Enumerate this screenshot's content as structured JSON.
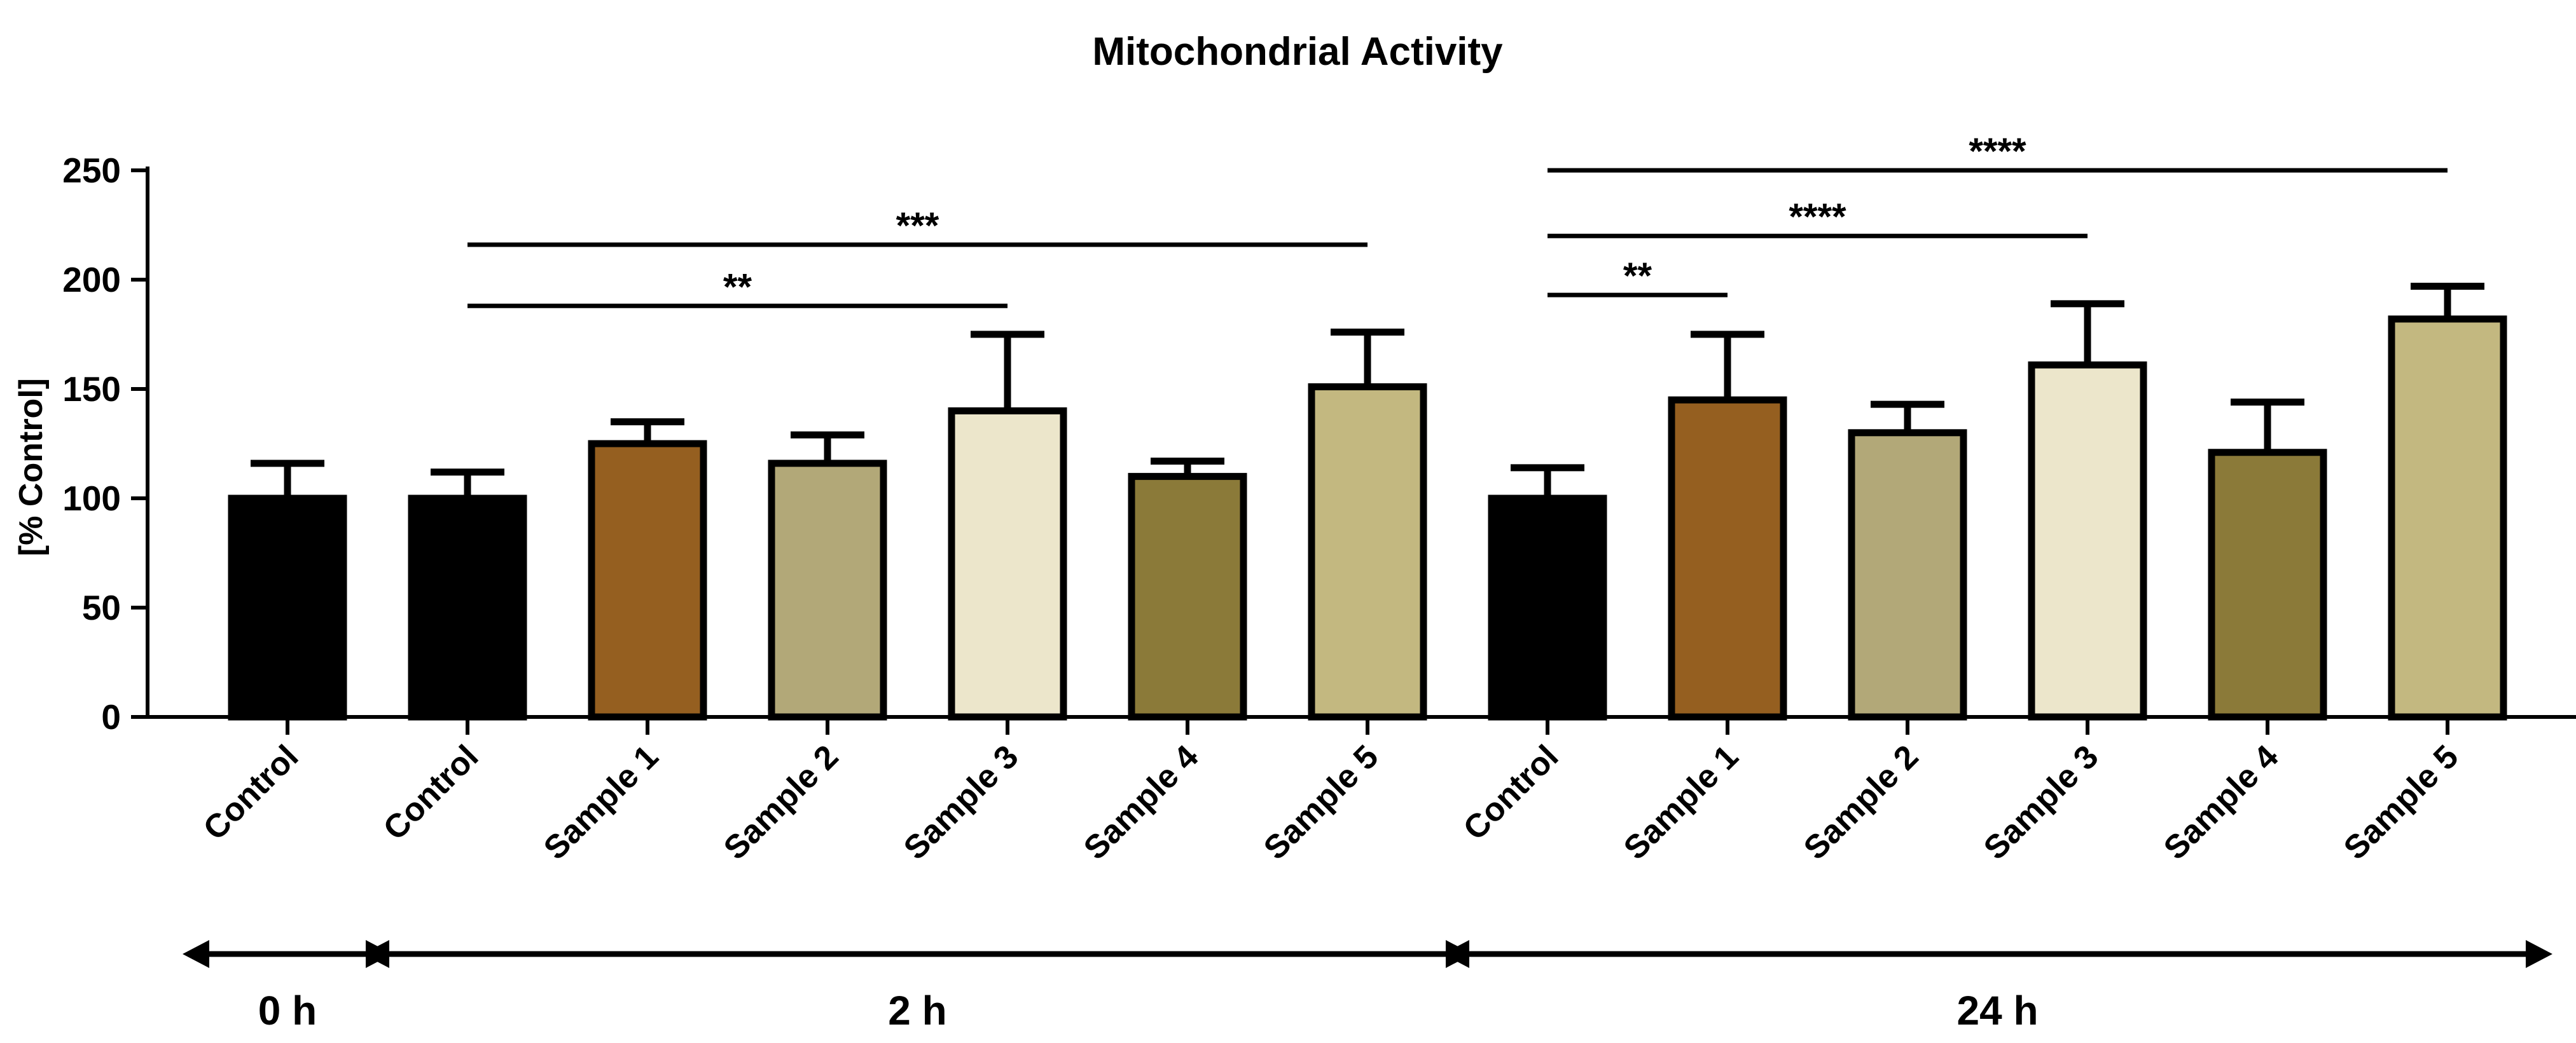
{
  "chart_data": {
    "type": "bar",
    "title": "Mitochondrial Activity",
    "xlabel": "",
    "ylabel": "[% Control]",
    "ylim": [
      0,
      250
    ],
    "yticks": [
      0,
      50,
      100,
      150,
      200,
      250
    ],
    "grid": false,
    "categories": [
      "Control",
      "Control",
      "Sample 1",
      "Sample 2",
      "Sample 3",
      "Sample 4",
      "Sample 5",
      "Control",
      "Sample 1",
      "Sample 2",
      "Sample 3",
      "Sample 4",
      "Sample 5"
    ],
    "values": [
      100,
      100,
      125,
      116,
      140,
      110,
      151,
      100,
      145,
      130,
      161,
      121,
      182
    ],
    "errors": [
      16,
      12,
      10,
      13,
      35,
      7,
      25,
      14,
      30,
      13,
      28,
      23,
      15
    ],
    "colors": [
      "#000000",
      "#000000",
      "#955f20",
      "#b2a878",
      "#ece6cb",
      "#8b7a39",
      "#c3b880",
      "#000000",
      "#955f20",
      "#b2a878",
      "#ece6cb",
      "#8b7a39",
      "#c3b880"
    ],
    "groups": [
      {
        "label": "0 h",
        "start": 0,
        "end": 0
      },
      {
        "label": "2 h",
        "start": 1,
        "end": 6
      },
      {
        "label": "24 h",
        "start": 7,
        "end": 12
      }
    ],
    "significance": [
      {
        "from": 1,
        "to": 4,
        "label": "**",
        "y": 188
      },
      {
        "from": 1,
        "to": 6,
        "label": "***",
        "y": 216
      },
      {
        "from": 7,
        "to": 8,
        "label": "**",
        "y": 193
      },
      {
        "from": 7,
        "to": 10,
        "label": "****",
        "y": 220
      },
      {
        "from": 7,
        "to": 12,
        "label": "****",
        "y": 250
      }
    ]
  }
}
